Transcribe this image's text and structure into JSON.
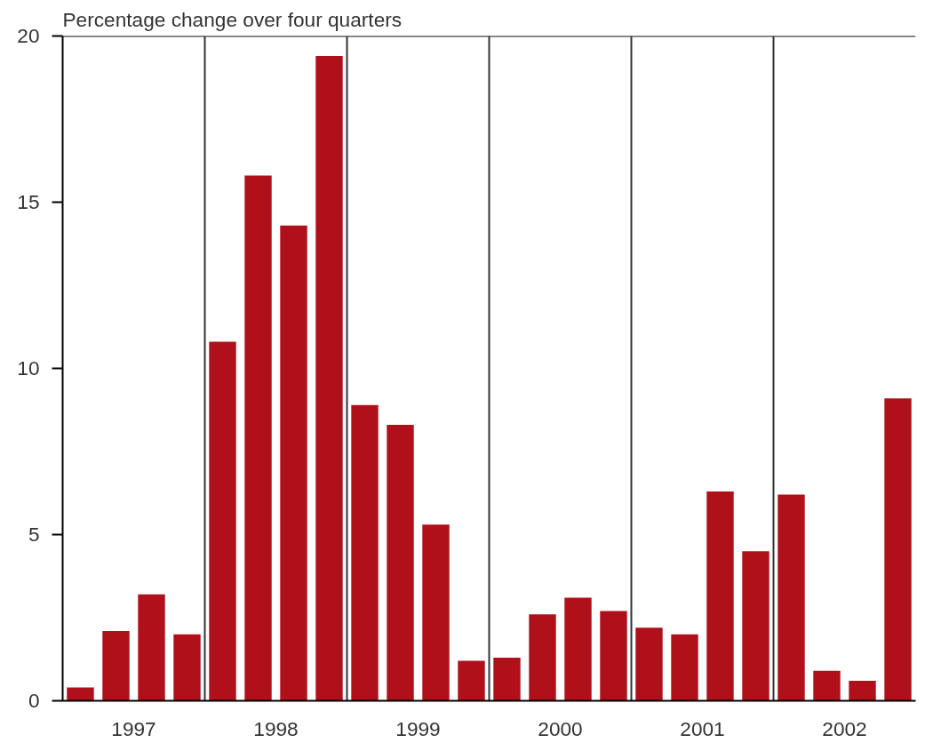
{
  "chart_data": {
    "type": "bar",
    "ylabel": "Percentage change over four quarters",
    "categories": [
      null,
      null,
      null,
      null,
      null,
      null,
      null,
      null,
      null,
      null,
      null,
      null,
      null,
      null,
      null,
      null,
      null,
      null,
      null,
      null,
      null,
      null,
      null,
      null
    ],
    "annotations": [
      "1997",
      "1998",
      "1999",
      "2000",
      "2001",
      "2002"
    ],
    "values": [
      0.4,
      2.1,
      3.2,
      2.0,
      10.8,
      15.8,
      14.3,
      19.4,
      8.9,
      8.3,
      5.3,
      1.2,
      1.3,
      2.6,
      3.1,
      2.7,
      2.2,
      2.0,
      6.3,
      4.5,
      6.2,
      0.9,
      0.6,
      9.1
    ],
    "color": "#b0101a",
    "ylim": [
      0,
      20
    ],
    "yticks": [
      0,
      5,
      10,
      15,
      20
    ]
  }
}
